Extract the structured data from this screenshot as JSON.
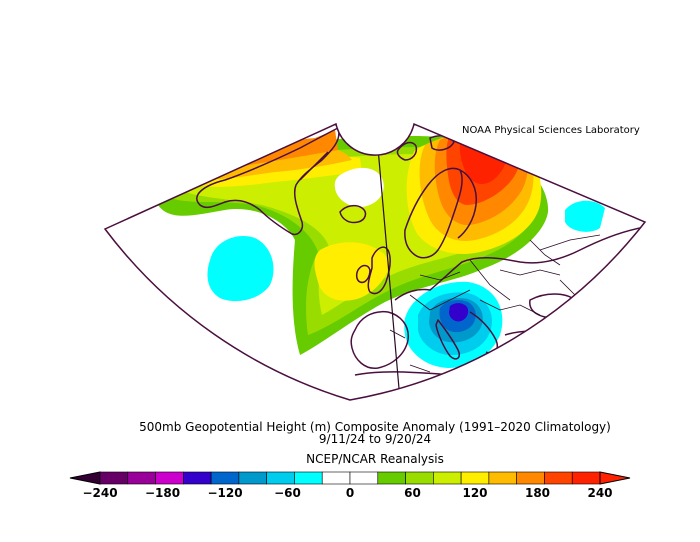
{
  "credit": "NOAA Physical Sciences Laboratory",
  "title": "500mb Geopotential Height (m) Composite Anomaly (1991–2020 Climatology)",
  "dates": "9/11/24   to 9/20/24",
  "source": "NCEP/NCAR Reanalysis",
  "colorbar": {
    "min": -240,
    "max": 240,
    "step": 30,
    "tick_labels": [
      "−240",
      "−180",
      "−120",
      "−60",
      "0",
      "60",
      "120",
      "180",
      "240"
    ],
    "tick_values": [
      -240,
      -180,
      -120,
      -60,
      0,
      60,
      120,
      180,
      240
    ],
    "colors": [
      "#660066",
      "#990099",
      "#cc00cc",
      "#3300cc",
      "#0066cc",
      "#0099cc",
      "#00ccee",
      "#00ffff",
      "#ffffff",
      "#ffffff",
      "#66cc00",
      "#99dd00",
      "#ccee00",
      "#ffee00",
      "#ffbb00",
      "#ff8800",
      "#ff4400",
      "#ff2200"
    ]
  },
  "colors": {
    "coastline": "#4a0f3f",
    "border": "#2a0a25"
  }
}
